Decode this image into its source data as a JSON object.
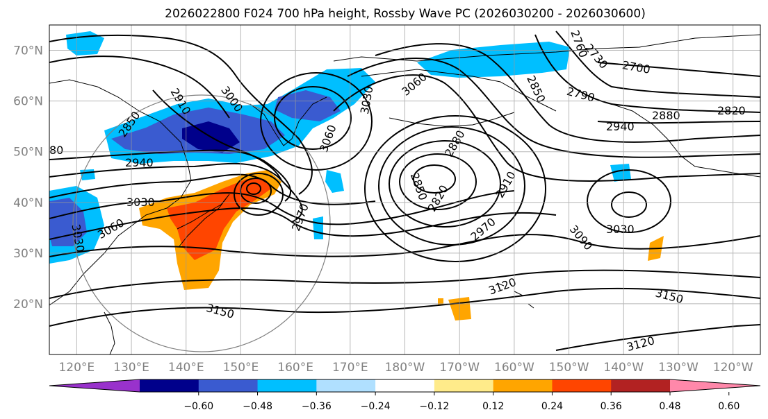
{
  "title": "2026022800 F024 700 hPa height, Rossby Wave PC (2026030200 - 2026030600)",
  "lat_labels": [
    "70°N",
    "60°N",
    "50°N",
    "40°N",
    "30°N",
    "20°N"
  ],
  "lat_values": [
    70,
    60,
    50,
    40,
    30,
    20
  ],
  "lon_labels": [
    "120°E",
    "130°E",
    "140°E",
    "150°E",
    "160°E",
    "170°E",
    "180°W",
    "170°W",
    "160°W",
    "150°W",
    "140°W",
    "130°W",
    "120°W"
  ],
  "lon_values": [
    120,
    130,
    140,
    150,
    160,
    170,
    180,
    190,
    200,
    210,
    220,
    230,
    240
  ],
  "map_extent": {
    "lon_min": 115,
    "lon_max": 245,
    "lat_min": 10,
    "lat_max": 75
  },
  "colorbar": {
    "colors": [
      "#9932cc",
      "#00008b",
      "#3a5bd0",
      "#00bfff",
      "#b0e0ff",
      "#ffffff",
      "#ffeb8a",
      "#ffa500",
      "#ff4500",
      "#b22222",
      "#ff88aa"
    ],
    "ticks": [
      "−0.60",
      "−0.48",
      "−0.36",
      "−0.24",
      "−0.12",
      "0.12",
      "0.24",
      "0.36",
      "0.48",
      "0.60"
    ]
  },
  "contour_labels": [
    "2910",
    "3000",
    "2850",
    "2940",
    "3030",
    "3060",
    "3030",
    "3060",
    "3030",
    "2880",
    "2850",
    "2820",
    "2910",
    "2970",
    "2970",
    "3030",
    "3090",
    "3120",
    "3150",
    "3150",
    "3120",
    "2700",
    "2790",
    "2850",
    "2760",
    "2730",
    "2820",
    "2880",
    "2940",
    "3060",
    "80"
  ]
}
